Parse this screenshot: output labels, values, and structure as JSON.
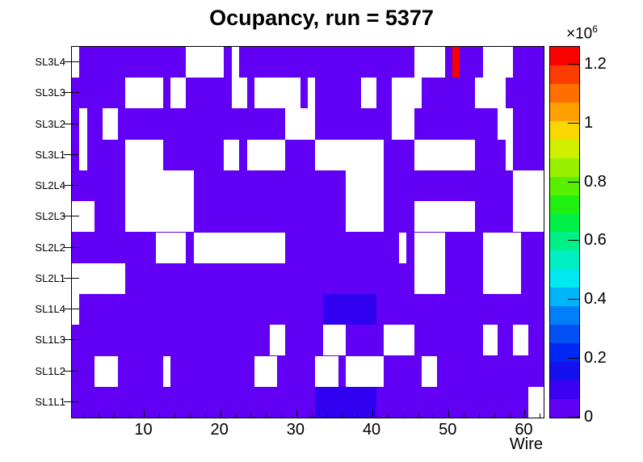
{
  "title": "Ocupancy, run = 5377",
  "axes": {
    "x_label": "Wire",
    "x_bins": 62,
    "x_major_ticks": [
      10,
      20,
      30,
      40,
      50,
      60
    ],
    "x_minor_tick_step": 2,
    "y_row_labels_top_to_bottom": [
      "SL3L4",
      "SL3L3",
      "SL3L2",
      "SL3L1",
      "SL2L4",
      "SL2L3",
      "SL2L2",
      "SL2L1",
      "SL1L4",
      "SL1L3",
      "SL1L2",
      "SL1L1"
    ]
  },
  "colorbar": {
    "power_base": "×10",
    "power_exp": "6",
    "tick_values": [
      0,
      0.2,
      0.4,
      0.6,
      0.8,
      1,
      1.2
    ],
    "tick_labels": [
      "0",
      "0.2",
      "0.4",
      "0.6",
      "0.8",
      "1",
      "1.2"
    ],
    "z_max": 1.26,
    "band_colors_bottom_to_top": [
      "#6100f4",
      "#3c00f2",
      "#1410ee",
      "#0028f2",
      "#0050f6",
      "#0080f8",
      "#00b4f8",
      "#00e8f0",
      "#00f0c4",
      "#00f088",
      "#00f048",
      "#20f010",
      "#58f000",
      "#98f000",
      "#d0f000",
      "#f8d800",
      "#fda000",
      "#fd7000",
      "#fb3c00",
      "#f90200"
    ]
  },
  "colors": {
    "background_min": "#6100f4",
    "empty": "#ffffff",
    "blue": "#3000f0",
    "red": "#f90200",
    "frame": "#000000"
  },
  "chart_data": {
    "type": "heatmap",
    "title": "Ocupancy, run = 5377",
    "xlabel": "Wire",
    "x_range": [
      1,
      62
    ],
    "x_major_ticks": [
      10,
      20,
      30,
      40,
      50,
      60
    ],
    "z_unit": "counts ×10^6",
    "z_scale_max": 1.26,
    "baseline_value_approx": 0.05,
    "legend_position": "right-colorbar",
    "rows": [
      {
        "label": "SL3L4",
        "empty_wire_ranges": [
          [
            1,
            1
          ],
          [
            16,
            20
          ],
          [
            22,
            22
          ],
          [
            46,
            49
          ],
          [
            55,
            58
          ]
        ],
        "hot_cells": [
          {
            "wires": [
              51,
              51
            ],
            "value_approx": 1.25,
            "color": "red"
          }
        ]
      },
      {
        "label": "SL3L3",
        "empty_wire_ranges": [
          [
            8,
            12
          ],
          [
            14,
            15
          ],
          [
            22,
            23
          ],
          [
            25,
            30
          ],
          [
            32,
            32
          ],
          [
            39,
            40
          ],
          [
            43,
            46
          ],
          [
            54,
            57
          ]
        ],
        "hot_cells": []
      },
      {
        "label": "SL3L2",
        "empty_wire_ranges": [
          [
            2,
            2
          ],
          [
            5,
            6
          ],
          [
            29,
            32
          ],
          [
            43,
            45
          ],
          [
            57,
            58
          ]
        ],
        "hot_cells": []
      },
      {
        "label": "SL3L1",
        "empty_wire_ranges": [
          [
            2,
            2
          ],
          [
            8,
            12
          ],
          [
            21,
            22
          ],
          [
            24,
            28
          ],
          [
            33,
            41
          ],
          [
            46,
            53
          ],
          [
            58,
            58
          ]
        ],
        "hot_cells": []
      },
      {
        "label": "SL2L4",
        "empty_wire_ranges": [
          [
            8,
            16
          ],
          [
            37,
            41
          ],
          [
            59,
            62
          ]
        ],
        "hot_cells": []
      },
      {
        "label": "SL2L3",
        "empty_wire_ranges": [
          [
            1,
            3
          ],
          [
            8,
            16
          ],
          [
            37,
            41
          ],
          [
            46,
            53
          ],
          [
            59,
            62
          ]
        ],
        "hot_cells": []
      },
      {
        "label": "SL2L2",
        "empty_wire_ranges": [
          [
            12,
            15
          ],
          [
            17,
            28
          ],
          [
            44,
            44
          ],
          [
            46,
            49
          ],
          [
            55,
            59
          ]
        ],
        "hot_cells": []
      },
      {
        "label": "SL2L1",
        "empty_wire_ranges": [
          [
            1,
            7
          ],
          [
            46,
            49
          ],
          [
            55,
            59
          ]
        ],
        "hot_cells": []
      },
      {
        "label": "SL1L4",
        "empty_wire_ranges": [
          [
            1,
            1
          ]
        ],
        "hot_cells": [
          {
            "wires": [
              34,
              40
            ],
            "value_approx": 0.15,
            "color": "blue"
          }
        ]
      },
      {
        "label": "SL1L3",
        "empty_wire_ranges": [
          [
            27,
            28
          ],
          [
            34,
            36
          ],
          [
            42,
            45
          ],
          [
            55,
            56
          ],
          [
            59,
            60
          ]
        ],
        "hot_cells": []
      },
      {
        "label": "SL1L2",
        "empty_wire_ranges": [
          [
            4,
            6
          ],
          [
            13,
            13
          ],
          [
            25,
            27
          ],
          [
            33,
            35
          ],
          [
            37,
            41
          ],
          [
            47,
            48
          ]
        ],
        "hot_cells": []
      },
      {
        "label": "SL1L1",
        "empty_wire_ranges": [
          [
            61,
            62
          ]
        ],
        "hot_cells": [
          {
            "wires": [
              33,
              40
            ],
            "value_approx": 0.15,
            "color": "blue"
          }
        ]
      }
    ]
  }
}
